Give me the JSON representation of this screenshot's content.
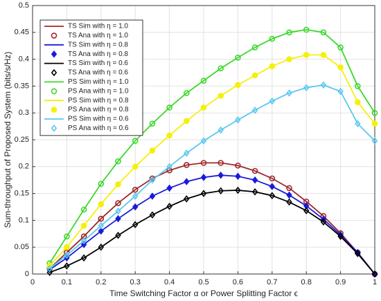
{
  "chart_data": {
    "type": "line",
    "xlabel": "Time Switching Factor α or Power Splitting Factor ϵ",
    "ylabel": "Sum-throughput of Proposed System (bits/s/Hz)",
    "x": [
      0.05,
      0.1,
      0.15,
      0.2,
      0.25,
      0.3,
      0.35,
      0.4,
      0.45,
      0.5,
      0.55,
      0.6,
      0.65,
      0.7,
      0.75,
      0.8,
      0.85,
      0.9,
      0.95,
      1
    ],
    "xlim": [
      0,
      1
    ],
    "xticks": [
      0,
      0.1,
      0.2,
      0.3,
      0.4,
      0.5,
      0.6,
      0.7,
      0.8,
      0.9,
      1
    ],
    "ylim": [
      0,
      0.5
    ],
    "yticks": [
      0,
      0.05,
      0.1,
      0.15,
      0.2,
      0.25,
      0.3,
      0.35,
      0.4,
      0.45,
      0.5
    ],
    "grid": true,
    "legend": "upper left",
    "series": [
      {
        "name": "TS Sim with η = 1.0",
        "color": "#a0282a",
        "line": true,
        "marker": "none",
        "values": [
          0.01,
          0.04,
          0.07,
          0.103,
          0.132,
          0.157,
          0.178,
          0.193,
          0.203,
          0.207,
          0.207,
          0.202,
          0.192,
          0.178,
          0.16,
          0.135,
          0.108,
          0.076,
          0.04,
          0
        ]
      },
      {
        "name": "TS Ana with η = 1.0",
        "color": "#a0282a",
        "line": false,
        "marker": "open-circle",
        "values": [
          0.01,
          0.04,
          0.07,
          0.103,
          0.132,
          0.157,
          0.178,
          0.193,
          0.203,
          0.207,
          0.207,
          0.202,
          0.192,
          0.178,
          0.16,
          0.135,
          0.108,
          0.076,
          0.04,
          0
        ]
      },
      {
        "name": "TS Sim with η = 0.8",
        "color": "#1a1adc",
        "line": true,
        "marker": "none",
        "values": [
          0.008,
          0.03,
          0.055,
          0.08,
          0.103,
          0.125,
          0.145,
          0.16,
          0.172,
          0.18,
          0.184,
          0.182,
          0.175,
          0.163,
          0.147,
          0.127,
          0.102,
          0.073,
          0.04,
          0
        ]
      },
      {
        "name": "TS Ana with η = 0.8",
        "color": "#1a1adc",
        "line": false,
        "marker": "filled-diamond",
        "values": [
          0.008,
          0.03,
          0.055,
          0.08,
          0.103,
          0.125,
          0.145,
          0.16,
          0.172,
          0.18,
          0.184,
          0.182,
          0.175,
          0.163,
          0.147,
          0.127,
          0.102,
          0.073,
          0.04,
          0
        ]
      },
      {
        "name": "TS Sim with η = 0.6",
        "color": "#000000",
        "line": true,
        "marker": "none",
        "values": [
          0.003,
          0.015,
          0.03,
          0.05,
          0.072,
          0.092,
          0.11,
          0.126,
          0.14,
          0.15,
          0.155,
          0.156,
          0.153,
          0.146,
          0.134,
          0.118,
          0.097,
          0.07,
          0.038,
          0
        ]
      },
      {
        "name": "TS Ana with η = 0.6",
        "color": "#000000",
        "line": false,
        "marker": "open-diamond",
        "values": [
          0.003,
          0.015,
          0.03,
          0.05,
          0.072,
          0.092,
          0.11,
          0.126,
          0.14,
          0.15,
          0.155,
          0.156,
          0.153,
          0.146,
          0.134,
          0.118,
          0.097,
          0.07,
          0.038,
          0
        ]
      },
      {
        "name": "PS Sim with η = 1.0",
        "color": "#3cd82a",
        "line": true,
        "marker": "none",
        "values": [
          0.02,
          0.07,
          0.12,
          0.168,
          0.21,
          0.248,
          0.28,
          0.31,
          0.337,
          0.36,
          0.383,
          0.403,
          0.422,
          0.438,
          0.45,
          0.455,
          0.45,
          0.422,
          0.35,
          0.3
        ]
      },
      {
        "name": "PS Ana with η = 1.0",
        "color": "#3cd82a",
        "line": false,
        "marker": "open-circle",
        "values": [
          0.02,
          0.07,
          0.12,
          0.168,
          0.21,
          0.248,
          0.28,
          0.31,
          0.337,
          0.36,
          0.383,
          0.403,
          0.422,
          0.438,
          0.45,
          0.455,
          0.45,
          0.422,
          0.35,
          0.3
        ]
      },
      {
        "name": "PS Sim with η = 0.8",
        "color": "#f4f00a",
        "line": true,
        "marker": "none",
        "values": [
          0.015,
          0.05,
          0.09,
          0.13,
          0.167,
          0.2,
          0.23,
          0.258,
          0.285,
          0.31,
          0.332,
          0.352,
          0.37,
          0.387,
          0.4,
          0.408,
          0.408,
          0.385,
          0.32,
          0.28
        ]
      },
      {
        "name": "PS Ana with η = 0.8",
        "color": "#f4f00a",
        "line": false,
        "marker": "filled-circle",
        "values": [
          0.015,
          0.05,
          0.09,
          0.13,
          0.167,
          0.2,
          0.23,
          0.258,
          0.285,
          0.31,
          0.332,
          0.352,
          0.37,
          0.387,
          0.4,
          0.408,
          0.408,
          0.385,
          0.32,
          0.28
        ]
      },
      {
        "name": "PS Sim with η = 0.6",
        "color": "#5ac8f0",
        "line": true,
        "marker": "none",
        "values": [
          0.01,
          0.035,
          0.062,
          0.09,
          0.117,
          0.145,
          0.175,
          0.2,
          0.225,
          0.248,
          0.268,
          0.287,
          0.305,
          0.322,
          0.337,
          0.347,
          0.352,
          0.34,
          0.28,
          0.248
        ]
      },
      {
        "name": "PS Ana with η = 0.6",
        "color": "#5ac8f0",
        "line": false,
        "marker": "open-diamond",
        "values": [
          0.01,
          0.035,
          0.062,
          0.09,
          0.117,
          0.145,
          0.175,
          0.2,
          0.225,
          0.248,
          0.268,
          0.287,
          0.305,
          0.322,
          0.337,
          0.347,
          0.352,
          0.34,
          0.28,
          0.248
        ]
      }
    ]
  }
}
